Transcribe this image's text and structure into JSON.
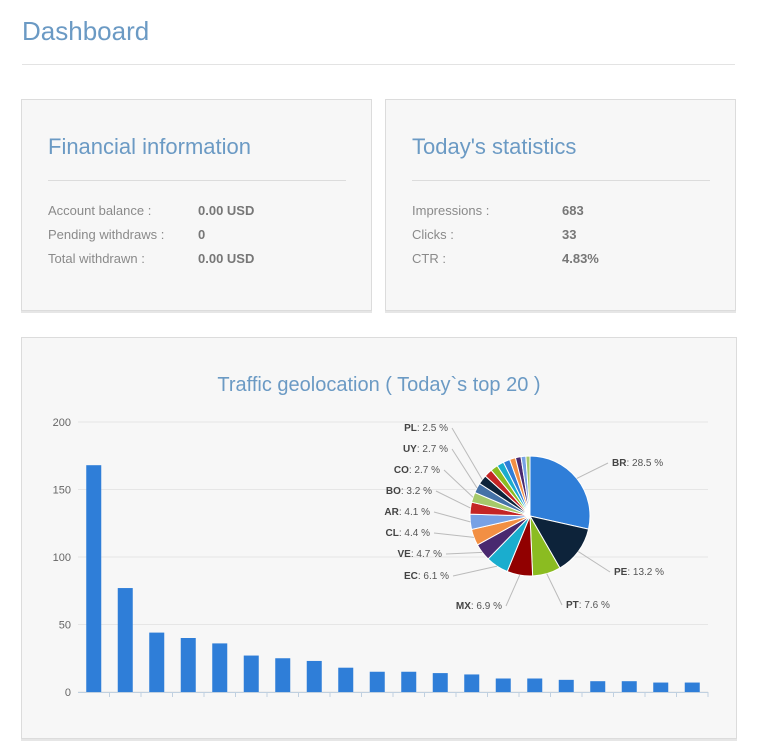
{
  "header": {
    "title": "Dashboard"
  },
  "financial": {
    "title": "Financial information",
    "rows": [
      {
        "label": "Account balance :",
        "value": "0.00 USD"
      },
      {
        "label": "Pending withdraws :",
        "value": "0"
      },
      {
        "label": "Total withdrawn :",
        "value": "0.00 USD"
      }
    ]
  },
  "stats": {
    "title": "Today's statistics",
    "rows": [
      {
        "label": "Impressions :",
        "value": "683"
      },
      {
        "label": "Clicks :",
        "value": "33"
      },
      {
        "label": "CTR :",
        "value": "4.83%"
      }
    ]
  },
  "colors": {
    "accent": "#6b9ac4",
    "bar": "#2f7ed8"
  },
  "chart_data": [
    {
      "type": "bar",
      "title": "Traffic geolocation ( Today`s top 20 )",
      "ylim": [
        0,
        200
      ],
      "yticks": [
        0,
        50,
        100,
        150,
        200
      ],
      "grid": true,
      "values": [
        168,
        77,
        44,
        40,
        36,
        27,
        25,
        23,
        18,
        15,
        15,
        14,
        13,
        10,
        10,
        9,
        8,
        8,
        7,
        7
      ]
    },
    {
      "type": "pie",
      "slices": [
        {
          "label": "BR",
          "value": 28.5,
          "text": "28.5 %",
          "color": "#2f7ed8"
        },
        {
          "label": "PE",
          "value": 13.2,
          "text": "13.2 %",
          "color": "#0d233a"
        },
        {
          "label": "PT",
          "value": 7.6,
          "text": "7.6 %",
          "color": "#8bbc21"
        },
        {
          "label": "MX",
          "value": 6.9,
          "text": "6.9 %",
          "color": "#910000"
        },
        {
          "label": "EC",
          "value": 6.1,
          "text": "6.1 %",
          "color": "#1aadce"
        },
        {
          "label": "VE",
          "value": 4.7,
          "text": "4.7 %",
          "color": "#492970"
        },
        {
          "label": "CL",
          "value": 4.4,
          "text": "4.4 %",
          "color": "#f28f43"
        },
        {
          "label": "AR",
          "value": 4.1,
          "text": "4.1 %",
          "color": "#77a1e5"
        },
        {
          "label": "BO",
          "value": 3.2,
          "text": "3.2 %",
          "color": "#c42525"
        },
        {
          "label": "CO",
          "value": 2.7,
          "text": "2.7 %",
          "color": "#a6c96a"
        },
        {
          "label": "UY",
          "value": 2.7,
          "text": "2.7 %",
          "color": "#4572a7"
        },
        {
          "label": "PL",
          "value": 2.5,
          "text": "2.5 %",
          "color": "#0d233a"
        },
        {
          "value": 2.2,
          "color": "#c42525"
        },
        {
          "value": 2.0,
          "color": "#8bbc21"
        },
        {
          "value": 1.9,
          "color": "#1aadce"
        },
        {
          "value": 1.8,
          "color": "#2f7ed8"
        },
        {
          "value": 1.6,
          "color": "#f28f43"
        },
        {
          "value": 1.5,
          "color": "#492970"
        },
        {
          "value": 1.3,
          "color": "#77a1e5"
        },
        {
          "value": 1.1,
          "color": "#a6c96a"
        }
      ]
    }
  ]
}
